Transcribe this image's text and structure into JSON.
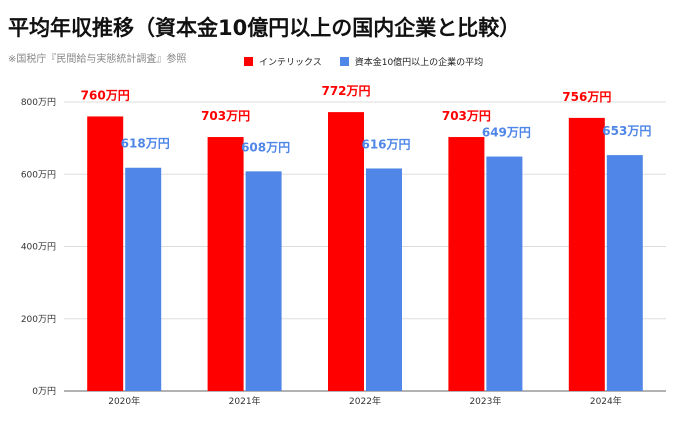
{
  "title": "平均年収推移（資本金10億円以上の国内企業と比較）",
  "source_note": "※国税庁『民間給与実態統計調査』参照",
  "colors": {
    "series1": "#ff0000",
    "series2": "#4f86e8",
    "grid": "#dddddd",
    "axis": "#666666"
  },
  "chart_data": {
    "type": "bar",
    "categories": [
      "2020年",
      "2021年",
      "2022年",
      "2023年",
      "2024年"
    ],
    "series": [
      {
        "name": "インテリックス",
        "values": [
          760,
          703,
          772,
          703,
          756
        ],
        "labels": [
          "760万円",
          "703万円",
          "772万円",
          "703万円",
          "756万円"
        ]
      },
      {
        "name": "資本金10億円以上の企業の平均",
        "values": [
          618,
          608,
          616,
          649,
          653
        ],
        "labels": [
          "618万円",
          "608万円",
          "616万円",
          "649万円",
          "653万円"
        ]
      }
    ],
    "ylim": [
      0,
      800
    ],
    "yticks": [
      0,
      200,
      400,
      600,
      800
    ],
    "ytick_labels": [
      "0万円",
      "200万円",
      "400万円",
      "600万円",
      "800万円"
    ],
    "grid": true,
    "legend": "top-center"
  }
}
